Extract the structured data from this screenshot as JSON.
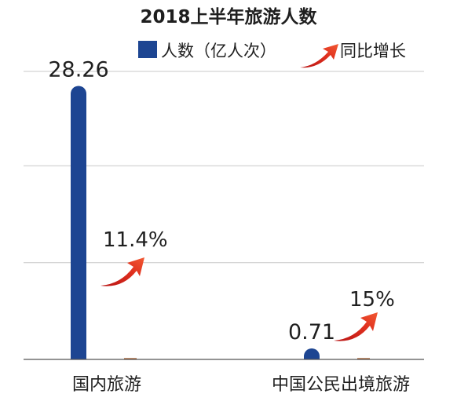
{
  "chart_data": {
    "type": "bar",
    "title": "2018上半年旅游人数",
    "categories": [
      "国内旅游",
      "中国公民出境旅游"
    ],
    "series": [
      {
        "name": "人数（亿人次）",
        "values": [
          28.26,
          0.71
        ]
      },
      {
        "name": "同比增长",
        "values": [
          "11.4%",
          "15%"
        ]
      }
    ],
    "value_labels": [
      "28.26",
      "0.71"
    ],
    "growth_labels": [
      "11.4%",
      "15%"
    ],
    "ylim": [
      0,
      30
    ],
    "grid": true,
    "legend_position": "top-right",
    "colors": {
      "bar": "#1d4592",
      "arrow": "#d9301f",
      "grid": "#c8c8c8",
      "axis": "#555555"
    },
    "icons": {
      "growth": "red-rising-arrow-icon"
    }
  }
}
